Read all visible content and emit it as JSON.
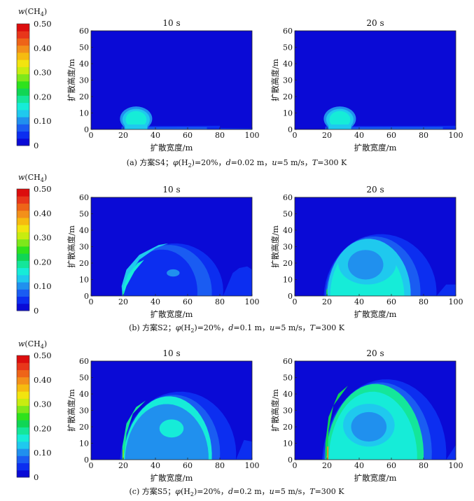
{
  "colorbar": {
    "label_prefix": "w(CH",
    "label_sub": "4",
    "label_suffix": ")",
    "ticks": [
      "0.50",
      "0.40",
      "0.30",
      "0.20",
      "0.10",
      "0"
    ],
    "colors": [
      "#0a0ad6",
      "#0c2ef0",
      "#1a5cf2",
      "#2090ee",
      "#1fc9ee",
      "#16ecd8",
      "#14e69a",
      "#10d655",
      "#2ee21c",
      "#7ee81a",
      "#c8ec10",
      "#f2e410",
      "#f6bb10",
      "#f3901a",
      "#ee6418",
      "#e8361a",
      "#dc0d0d"
    ]
  },
  "chart_data": [
    {
      "type": "heatmap",
      "title": "10 s",
      "xlabel": "扩散宽度/m",
      "ylabel": "扩散高度/m",
      "xlim": [
        0,
        100
      ],
      "ylim": [
        0,
        60
      ],
      "xticks": [
        "0",
        "20",
        "40",
        "60",
        "80",
        "100"
      ],
      "yticks": [
        "0",
        "10",
        "20",
        "30",
        "40",
        "50",
        "60"
      ],
      "scheme": "S4",
      "time_s": 10
    },
    {
      "type": "heatmap",
      "title": "20 s",
      "xlabel": "扩散宽度/m",
      "ylabel": "扩散高度/m",
      "xlim": [
        0,
        100
      ],
      "ylim": [
        0,
        60
      ],
      "xticks": [
        "0",
        "20",
        "40",
        "60",
        "80",
        "100"
      ],
      "yticks": [
        "0",
        "10",
        "20",
        "30",
        "40",
        "50",
        "60"
      ],
      "scheme": "S4",
      "time_s": 20
    },
    {
      "type": "heatmap",
      "title": "10 s",
      "xlabel": "扩散宽度/m",
      "ylabel": "扩散高度/m",
      "xlim": [
        0,
        100
      ],
      "ylim": [
        0,
        60
      ],
      "xticks": [
        "0",
        "20",
        "40",
        "60",
        "80",
        "100"
      ],
      "yticks": [
        "0",
        "10",
        "20",
        "30",
        "40",
        "50",
        "60"
      ],
      "scheme": "S2",
      "time_s": 10
    },
    {
      "type": "heatmap",
      "title": "20 s",
      "xlabel": "扩散宽度/m",
      "ylabel": "扩散高度/m",
      "xlim": [
        0,
        100
      ],
      "ylim": [
        0,
        60
      ],
      "xticks": [
        "0",
        "20",
        "40",
        "60",
        "80",
        "100"
      ],
      "yticks": [
        "0",
        "10",
        "20",
        "30",
        "40",
        "50",
        "60"
      ],
      "scheme": "S2",
      "time_s": 20
    },
    {
      "type": "heatmap",
      "title": "10 s",
      "xlabel": "扩散宽度/m",
      "ylabel": "扩散高度/m",
      "xlim": [
        0,
        100
      ],
      "ylim": [
        0,
        60
      ],
      "xticks": [
        "0",
        "20",
        "40",
        "60",
        "80",
        "100"
      ],
      "yticks": [
        "0",
        "10",
        "20",
        "30",
        "40",
        "50",
        "60"
      ],
      "scheme": "S5",
      "time_s": 10
    },
    {
      "type": "heatmap",
      "title": "20 s",
      "xlabel": "扩散宽度/m",
      "ylabel": "扩散高度/m",
      "xlim": [
        0,
        100
      ],
      "ylim": [
        0,
        60
      ],
      "xticks": [
        "0",
        "20",
        "40",
        "60",
        "80",
        "100"
      ],
      "yticks": [
        "0",
        "10",
        "20",
        "30",
        "40",
        "50",
        "60"
      ],
      "scheme": "S5",
      "time_s": 20
    }
  ],
  "captions": [
    {
      "a": "(a) 方案S4；",
      "phi": "φ",
      "h2": "(H",
      "h2sub": "2",
      "rest1": ")=20%，",
      "d": "d",
      "rest2": "=0.02 m，",
      "u": "u",
      "rest3": "=5 m/s，",
      "t": "T",
      "rest4": "=300 K"
    },
    {
      "a": "(b) 方案S2；",
      "phi": "φ",
      "h2": "(H",
      "h2sub": "2",
      "rest1": ")=20%，",
      "d": "d",
      "rest2": "=0.1 m，",
      "u": "u",
      "rest3": "=5 m/s，",
      "t": "T",
      "rest4": "=300 K"
    },
    {
      "a": "(c) 方案S5；",
      "phi": "φ",
      "h2": "(H",
      "h2sub": "2",
      "rest1": ")=20%，",
      "d": "d",
      "rest2": "=0.2 m，",
      "u": "u",
      "rest3": "=5 m/s，",
      "t": "T",
      "rest4": "=300 K"
    }
  ]
}
